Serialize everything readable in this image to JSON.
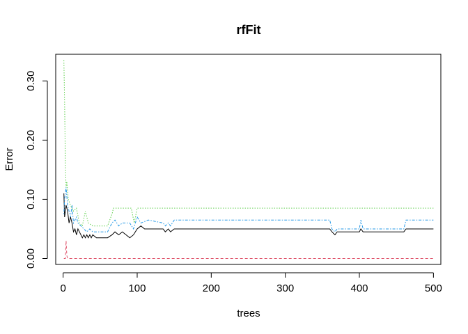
{
  "chart_data": {
    "type": "line",
    "title": "rfFit",
    "xlabel": "trees",
    "ylabel": "Error",
    "xlim": [
      -10,
      510
    ],
    "ylim": [
      -0.01,
      0.345
    ],
    "xticks": [
      0,
      100,
      200,
      300,
      400,
      500
    ],
    "yticks": [
      0.0,
      0.1,
      0.2,
      0.3
    ],
    "xtick_labels": [
      "0",
      "100",
      "200",
      "300",
      "400",
      "500"
    ],
    "ytick_labels": [
      "0.00",
      "0.10",
      "0.20",
      "0.30"
    ],
    "grid": false,
    "legend": "none",
    "series": [
      {
        "color": "#000000",
        "dash": "solid",
        "points": [
          [
            1,
            0.11
          ],
          [
            2,
            0.07
          ],
          [
            4,
            0.09
          ],
          [
            6,
            0.08
          ],
          [
            8,
            0.06
          ],
          [
            10,
            0.07
          ],
          [
            12,
            0.06
          ],
          [
            14,
            0.045
          ],
          [
            16,
            0.05
          ],
          [
            18,
            0.04
          ],
          [
            20,
            0.05
          ],
          [
            22,
            0.045
          ],
          [
            24,
            0.04
          ],
          [
            26,
            0.035
          ],
          [
            28,
            0.04
          ],
          [
            30,
            0.035
          ],
          [
            32,
            0.04
          ],
          [
            34,
            0.035
          ],
          [
            36,
            0.04
          ],
          [
            38,
            0.035
          ],
          [
            40,
            0.04
          ],
          [
            45,
            0.035
          ],
          [
            60,
            0.035
          ],
          [
            66,
            0.04
          ],
          [
            70,
            0.045
          ],
          [
            75,
            0.04
          ],
          [
            80,
            0.045
          ],
          [
            85,
            0.04
          ],
          [
            90,
            0.035
          ],
          [
            95,
            0.04
          ],
          [
            100,
            0.05
          ],
          [
            105,
            0.055
          ],
          [
            110,
            0.05
          ],
          [
            135,
            0.05
          ],
          [
            138,
            0.045
          ],
          [
            142,
            0.05
          ],
          [
            145,
            0.045
          ],
          [
            150,
            0.05
          ],
          [
            360,
            0.05
          ],
          [
            363,
            0.045
          ],
          [
            367,
            0.04
          ],
          [
            370,
            0.045
          ],
          [
            400,
            0.045
          ],
          [
            402,
            0.05
          ],
          [
            405,
            0.045
          ],
          [
            460,
            0.045
          ],
          [
            463,
            0.05
          ],
          [
            500,
            0.05
          ]
        ]
      },
      {
        "color": "#df536b",
        "dash": "dashed",
        "points": [
          [
            1,
            0.0
          ],
          [
            3,
            0.0
          ],
          [
            4,
            0.03
          ],
          [
            5,
            0.005
          ],
          [
            6,
            0.0
          ],
          [
            8,
            0.0
          ],
          [
            500,
            0.0
          ]
        ]
      },
      {
        "color": "#61d04f",
        "dash": "dotted",
        "points": [
          [
            1,
            0.335
          ],
          [
            2,
            0.265
          ],
          [
            3,
            0.16
          ],
          [
            4,
            0.12
          ],
          [
            5,
            0.13
          ],
          [
            7,
            0.1
          ],
          [
            10,
            0.09
          ],
          [
            14,
            0.08
          ],
          [
            18,
            0.085
          ],
          [
            22,
            0.06
          ],
          [
            26,
            0.055
          ],
          [
            30,
            0.08
          ],
          [
            34,
            0.06
          ],
          [
            40,
            0.055
          ],
          [
            60,
            0.055
          ],
          [
            66,
            0.075
          ],
          [
            68,
            0.085
          ],
          [
            92,
            0.085
          ],
          [
            96,
            0.06
          ],
          [
            100,
            0.085
          ],
          [
            500,
            0.085
          ]
        ]
      },
      {
        "color": "#2297e6",
        "dash": "dotdash",
        "points": [
          [
            1,
            0.075
          ],
          [
            2,
            0.1
          ],
          [
            4,
            0.12
          ],
          [
            6,
            0.09
          ],
          [
            8,
            0.08
          ],
          [
            10,
            0.07
          ],
          [
            12,
            0.09
          ],
          [
            14,
            0.06
          ],
          [
            16,
            0.065
          ],
          [
            18,
            0.07
          ],
          [
            20,
            0.06
          ],
          [
            24,
            0.055
          ],
          [
            28,
            0.05
          ],
          [
            32,
            0.045
          ],
          [
            36,
            0.05
          ],
          [
            40,
            0.045
          ],
          [
            45,
            0.045
          ],
          [
            60,
            0.045
          ],
          [
            66,
            0.06
          ],
          [
            70,
            0.065
          ],
          [
            75,
            0.055
          ],
          [
            80,
            0.06
          ],
          [
            85,
            0.06
          ],
          [
            90,
            0.06
          ],
          [
            95,
            0.05
          ],
          [
            100,
            0.07
          ],
          [
            105,
            0.06
          ],
          [
            115,
            0.065
          ],
          [
            135,
            0.06
          ],
          [
            138,
            0.055
          ],
          [
            142,
            0.06
          ],
          [
            145,
            0.055
          ],
          [
            150,
            0.065
          ],
          [
            360,
            0.065
          ],
          [
            363,
            0.05
          ],
          [
            367,
            0.045
          ],
          [
            370,
            0.05
          ],
          [
            400,
            0.05
          ],
          [
            402,
            0.065
          ],
          [
            405,
            0.05
          ],
          [
            460,
            0.05
          ],
          [
            463,
            0.065
          ],
          [
            500,
            0.065
          ]
        ]
      }
    ]
  }
}
